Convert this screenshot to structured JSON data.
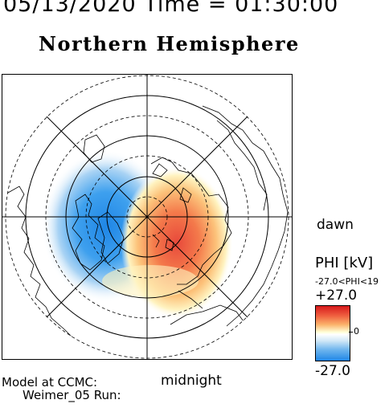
{
  "header": {
    "datetime": "05/13/2020 Time = 01:30:00",
    "hemisphere": "Northern Hemisphere"
  },
  "map": {
    "orientation_labels": {
      "right": "dawn",
      "bottom": "midnight"
    },
    "colors": {
      "positive": "#d7191c",
      "negative": "#1f86e6",
      "neutral": "#ffffff",
      "grid": "#000000"
    }
  },
  "colorbar": {
    "title": "PHI [kV]",
    "range_text": "-27.0<PHI<19",
    "max_label": "+27.0",
    "zero_label": "0",
    "min_label": "-27.0",
    "max": 27.0,
    "min": -27.0
  },
  "footer": {
    "model_line1": "Model at CCMC:",
    "model_line2": "Weimer_05 Run:"
  }
}
